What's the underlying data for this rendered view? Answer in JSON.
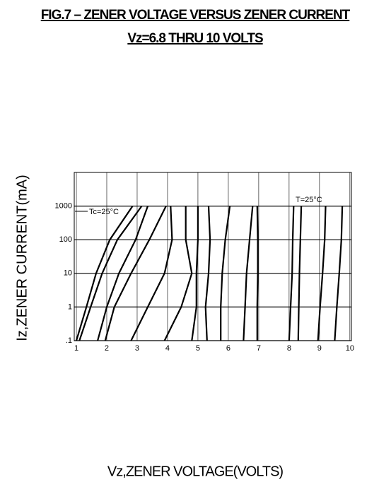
{
  "chart_data": {
    "type": "line",
    "title": "FIG.7 – ZENER VOLTAGE VERSUS ZENER CURRENT",
    "subtitle": "Vz=6.8 THRU 10 VOLTS",
    "x_label": "Vz,ZENER VOLTAGE(VOLTS)",
    "y_label": "Iz,ZENER CURRENT(mA)",
    "annotations": [
      "Tc=25°C",
      "T=25°C"
    ],
    "log_y": true,
    "grid": true,
    "color": "#000000",
    "xlim": [
      0.93,
      10.05
    ],
    "xticks": [
      1,
      2,
      3,
      4,
      5,
      6,
      7,
      8,
      9,
      10
    ],
    "ylim": [
      0.1,
      10000
    ],
    "yticks": [
      {
        "value": 0.1,
        "label": ".1"
      },
      1,
      10,
      100,
      1000
    ],
    "y": [
      0.1,
      1,
      10,
      100,
      1000
    ],
    "series": [
      {
        "x": [
          1.0,
          1.33,
          1.65,
          2.1,
          2.85
        ]
      },
      {
        "x": [
          1.1,
          1.47,
          1.85,
          2.35,
          3.15
        ]
      },
      {
        "x": [
          1.7,
          2.0,
          2.4,
          2.95,
          3.35
        ]
      },
      {
        "x": [
          1.95,
          2.25,
          2.8,
          3.4,
          3.95
        ]
      },
      {
        "x": [
          2.8,
          3.35,
          3.9,
          4.15,
          4.1
        ]
      },
      {
        "x": [
          3.9,
          4.45,
          4.8,
          4.6,
          4.6
        ]
      },
      {
        "x": [
          4.8,
          4.95,
          4.95,
          5.0,
          5.0
        ]
      },
      {
        "x": [
          5.3,
          5.25,
          5.35,
          5.4,
          5.35
        ]
      },
      {
        "x": [
          5.75,
          5.75,
          5.8,
          5.9,
          6.05
        ]
      },
      {
        "x": [
          6.5,
          6.55,
          6.6,
          6.7,
          6.8
        ]
      },
      {
        "x": [
          6.95,
          6.95,
          6.97,
          6.97,
          6.95
        ]
      },
      {
        "x": [
          8.0,
          8.05,
          8.1,
          8.12,
          8.15
        ]
      },
      {
        "x": [
          8.3,
          8.32,
          8.34,
          8.37,
          8.4
        ]
      },
      {
        "x": [
          8.95,
          9.02,
          9.1,
          9.17,
          9.2
        ]
      },
      {
        "x": [
          9.5,
          9.57,
          9.65,
          9.72,
          9.75
        ]
      }
    ]
  }
}
